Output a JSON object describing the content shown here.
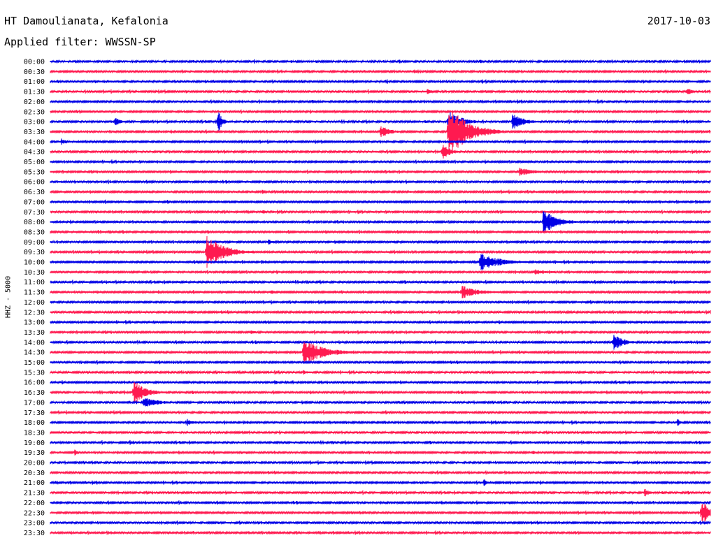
{
  "header": {
    "station": "HT Damoulianata, Kefalonia",
    "date": "2017-10-03",
    "filter_label": "Applied filter: WWSSN-SP"
  },
  "chart_data": {
    "type": "helicorder",
    "title": "HT Damoulianata, Kefalonia",
    "date": "2017-10-03",
    "filter": "Applied filter: WWSSN-SP",
    "ylabel": "HHZ - 5000",
    "row_labels": [
      "00:00",
      "00:30",
      "01:00",
      "01:30",
      "02:00",
      "02:30",
      "03:00",
      "03:30",
      "04:00",
      "04:30",
      "05:00",
      "05:30",
      "06:00",
      "06:30",
      "07:00",
      "07:30",
      "08:00",
      "08:30",
      "09:00",
      "09:30",
      "10:00",
      "10:30",
      "11:00",
      "11:30",
      "12:00",
      "12:30",
      "13:00",
      "13:30",
      "14:00",
      "14:30",
      "15:00",
      "15:30",
      "16:00",
      "16:30",
      "17:00",
      "17:30",
      "18:00",
      "18:30",
      "19:00",
      "19:30",
      "20:00",
      "20:30",
      "21:00",
      "21:30",
      "22:00",
      "22:30",
      "23:00",
      "23:30"
    ],
    "minutes_per_line": 30,
    "colors": [
      "#0000e6",
      "#ff1a50"
    ],
    "events": [
      {
        "row": 0,
        "minute": 19.5,
        "amp": 3,
        "dur": 1.0
      },
      {
        "row": 1,
        "minute": 16.5,
        "amp": 4,
        "dur": 0.6
      },
      {
        "row": 3,
        "minute": 17.1,
        "amp": 5,
        "dur": 0.6
      },
      {
        "row": 3,
        "minute": 28.9,
        "amp": 5,
        "dur": 1.2
      },
      {
        "row": 4,
        "minute": 11.9,
        "amp": 3,
        "dur": 0.8
      },
      {
        "row": 6,
        "minute": 2.9,
        "amp": 8,
        "dur": 0.8
      },
      {
        "row": 6,
        "minute": 7.6,
        "amp": 20,
        "dur": 0.5
      },
      {
        "row": 6,
        "minute": 18.1,
        "amp": 18,
        "dur": 1.5
      },
      {
        "row": 6,
        "minute": 21.0,
        "amp": 12,
        "dur": 1.5
      },
      {
        "row": 7,
        "minute": 15.0,
        "amp": 10,
        "dur": 1.2
      },
      {
        "row": 7,
        "minute": 18.1,
        "amp": 38,
        "dur": 2.5
      },
      {
        "row": 8,
        "minute": 0.5,
        "amp": 5,
        "dur": 0.6
      },
      {
        "row": 9,
        "minute": 17.8,
        "amp": 14,
        "dur": 1.0
      },
      {
        "row": 11,
        "minute": 21.3,
        "amp": 6,
        "dur": 2.0
      },
      {
        "row": 13,
        "minute": 9.6,
        "amp": 5,
        "dur": 0.6
      },
      {
        "row": 15,
        "minute": 9.6,
        "amp": 5,
        "dur": 0.5
      },
      {
        "row": 16,
        "minute": 22.4,
        "amp": 20,
        "dur": 1.6
      },
      {
        "row": 18,
        "minute": 9.9,
        "amp": 5,
        "dur": 0.6
      },
      {
        "row": 19,
        "minute": 7.1,
        "amp": 25,
        "dur": 2.2
      },
      {
        "row": 20,
        "minute": 19.5,
        "amp": 14,
        "dur": 2.5
      },
      {
        "row": 21,
        "minute": 22.0,
        "amp": 4,
        "dur": 2.5
      },
      {
        "row": 23,
        "minute": 10.0,
        "amp": 4,
        "dur": 0.6
      },
      {
        "row": 23,
        "minute": 18.7,
        "amp": 10,
        "dur": 2.2
      },
      {
        "row": 27,
        "minute": 9.1,
        "amp": 4,
        "dur": 0.6
      },
      {
        "row": 28,
        "minute": 25.6,
        "amp": 12,
        "dur": 1.3
      },
      {
        "row": 29,
        "minute": 11.5,
        "amp": 20,
        "dur": 2.5
      },
      {
        "row": 31,
        "minute": 11.5,
        "amp": 4,
        "dur": 0.5
      },
      {
        "row": 32,
        "minute": 10.2,
        "amp": 4,
        "dur": 0.6
      },
      {
        "row": 33,
        "minute": 3.8,
        "amp": 18,
        "dur": 1.5
      },
      {
        "row": 34,
        "minute": 4.2,
        "amp": 8,
        "dur": 2.0
      },
      {
        "row": 36,
        "minute": 6.2,
        "amp": 6,
        "dur": 0.9
      },
      {
        "row": 36,
        "minute": 28.5,
        "amp": 6,
        "dur": 0.4
      },
      {
        "row": 38,
        "minute": 3.6,
        "amp": 4,
        "dur": 0.4
      },
      {
        "row": 39,
        "minute": 1.1,
        "amp": 5,
        "dur": 0.4
      },
      {
        "row": 39,
        "minute": 21.9,
        "amp": 5,
        "dur": 0.4
      },
      {
        "row": 42,
        "minute": 19.7,
        "amp": 6,
        "dur": 0.4
      },
      {
        "row": 43,
        "minute": 27.0,
        "amp": 7,
        "dur": 0.6
      },
      {
        "row": 45,
        "minute": 29.6,
        "amp": 22,
        "dur": 0.8
      }
    ]
  }
}
